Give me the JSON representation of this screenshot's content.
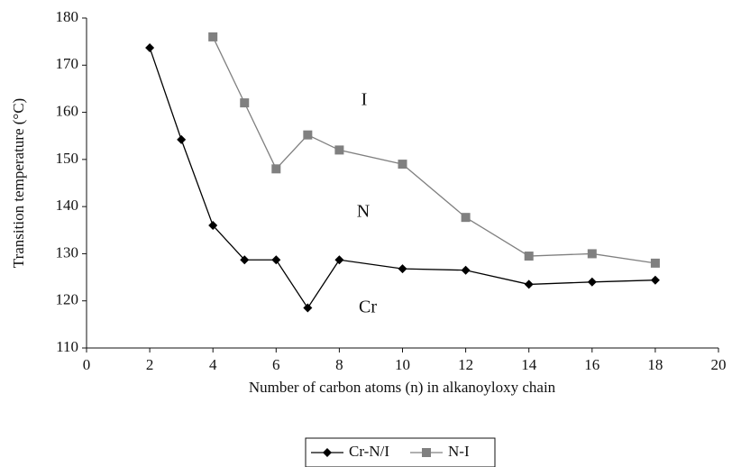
{
  "chart_data": {
    "type": "line",
    "xlabel": "Number of carbon atoms (n) in alkanoyloxy chain",
    "ylabel": "Transition temperature (°C)",
    "xlim": [
      0,
      20
    ],
    "xticks": [
      0,
      2,
      4,
      6,
      8,
      10,
      12,
      14,
      16,
      18,
      20
    ],
    "ylim": [
      110,
      180
    ],
    "yticks": [
      110,
      120,
      130,
      140,
      150,
      160,
      170,
      180
    ],
    "legend": "bottom",
    "annotations": [
      "I",
      "N",
      "Cr"
    ],
    "series": [
      {
        "name": "Cr-N/I",
        "color": "#000000",
        "marker": "diamond",
        "x": [
          2,
          3,
          4,
          5,
          6,
          7,
          8,
          10,
          12,
          14,
          16,
          18
        ],
        "values": [
          173.7,
          154.2,
          136,
          128.7,
          128.7,
          118.5,
          128.7,
          126.8,
          126.5,
          123.5,
          124,
          124.4
        ]
      },
      {
        "name": "N-I",
        "color": "#808080",
        "marker": "square",
        "x": [
          4,
          5,
          6,
          7,
          8,
          10,
          12,
          14,
          16,
          18
        ],
        "values": [
          176,
          162,
          148,
          155.2,
          152,
          149,
          137.7,
          129.5,
          130,
          128
        ]
      }
    ]
  }
}
